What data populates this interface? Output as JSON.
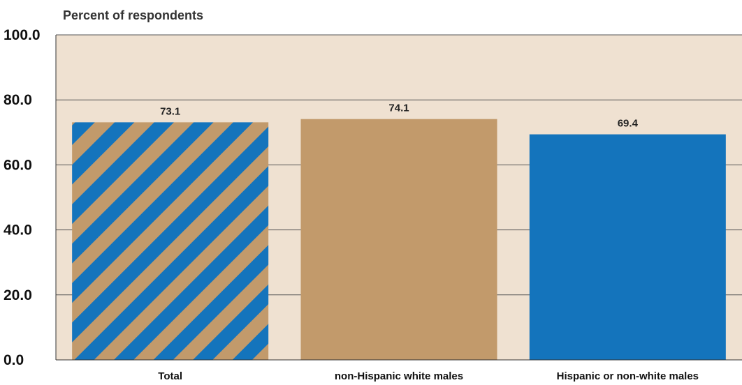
{
  "chart_data": {
    "type": "bar",
    "ylabel": "Percent of respondents",
    "categories": [
      "Total",
      "non-Hispanic white males",
      "Hispanic or non-white males"
    ],
    "values": [
      73.1,
      74.1,
      69.4
    ],
    "data_labels": [
      "73.1",
      "74.1",
      "69.4"
    ],
    "yticks": [
      "0.0",
      "20.0",
      "40.0",
      "60.0",
      "80.0",
      "100.0"
    ],
    "ylim": [
      0,
      100
    ],
    "grid": true,
    "colors": {
      "background": "#efe1d1",
      "tan": "#c29a6b",
      "blue": "#1474bc"
    }
  }
}
